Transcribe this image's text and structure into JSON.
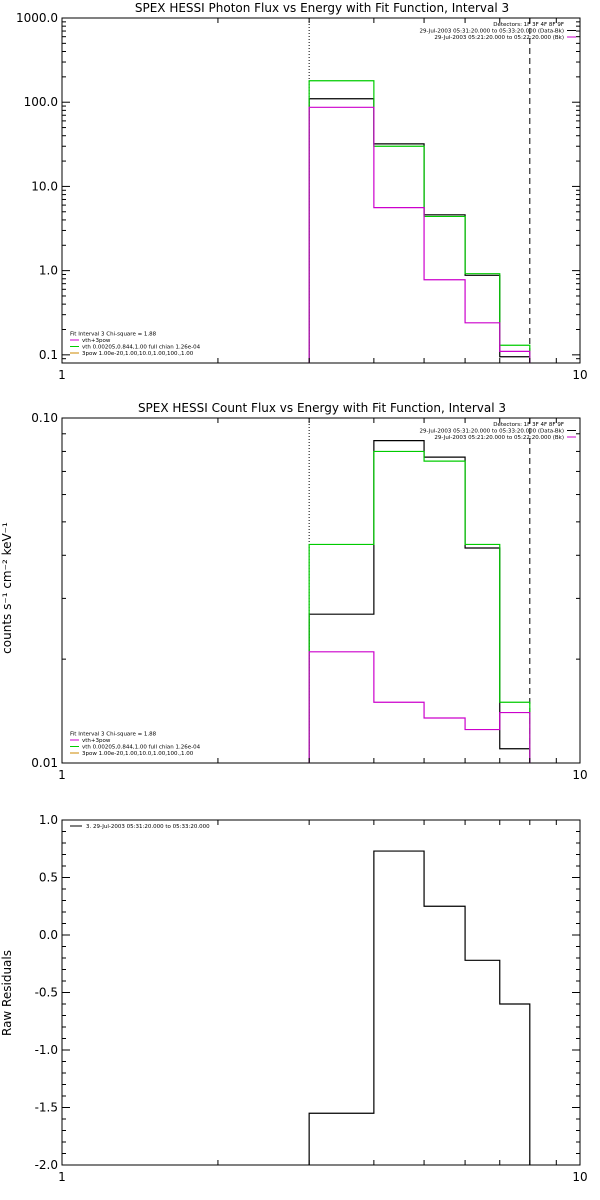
{
  "colors": {
    "data": "#000000",
    "vth_spow": "#cc00cc",
    "vth": "#00cc00",
    "spow": "#cc8800",
    "background": "#ffffff"
  },
  "chart_data": [
    {
      "type": "line",
      "step": true,
      "title": "SPEX HESSI Photon Flux vs Energy with Fit Function, Interval 3",
      "xlabel": "",
      "ylabel": "",
      "xscale": "log",
      "yscale": "log",
      "xlim": [
        1,
        10
      ],
      "ylim": [
        0.08,
        1000
      ],
      "x_tick_labels": [
        {
          "v": 1,
          "t": "1"
        },
        {
          "v": 10,
          "t": "10"
        }
      ],
      "y_tick_labels": [
        {
          "v": 0.1,
          "t": "0.1"
        },
        {
          "v": 1,
          "t": "1.0"
        },
        {
          "v": 10,
          "t": "10.0"
        },
        {
          "v": 100,
          "t": "100.0"
        },
        {
          "v": 1000,
          "t": "1000.0"
        }
      ],
      "vlines": [
        {
          "x": 3,
          "style": "dotted"
        },
        {
          "x": 8,
          "style": "dashed"
        }
      ],
      "bin_edges": [
        3,
        4,
        5,
        6,
        7,
        8
      ],
      "series": [
        {
          "color": "#000000",
          "values": [
            110,
            32,
            4.6,
            0.88,
            0.095
          ]
        },
        {
          "color": "#00cc00",
          "values": [
            180,
            30,
            4.4,
            0.92,
            0.13
          ]
        },
        {
          "color": "#cc00cc",
          "values": [
            87,
            5.6,
            0.78,
            0.24,
            0.11
          ]
        }
      ],
      "legend_top": [
        {
          "text": "Detectors: 1F 3F 4F 8F 9F",
          "color": ""
        },
        {
          "text": "29-Jul-2003 05:31:20.000 to 05:33:20.000 (Data-Bk)",
          "color": "#000000"
        },
        {
          "text": "29-Jul-2003 05:21:20.000 to 05:22:20.000 (Bk)",
          "color": "#cc00cc"
        }
      ],
      "legend_bottom": [
        {
          "text": "Fit Interval 3   Chi-square = 1.88",
          "color": ""
        },
        {
          "text": "vth+3pow",
          "color": "#cc00cc"
        },
        {
          "text": "vth 0.00205,0.844,1.00  full chian 1.26e-04",
          "color": "#00cc00"
        },
        {
          "text": "3pow 1.00e-20,1.00,10.0,1.00,100.,1.00",
          "color": "#cc8800"
        }
      ]
    },
    {
      "type": "line",
      "step": true,
      "title": "SPEX HESSI Count Flux vs Energy with Fit Function, Interval 3",
      "xlabel": "",
      "ylabel": "counts s⁻¹ cm⁻² keV⁻¹",
      "xscale": "log",
      "yscale": "log",
      "xlim": [
        1,
        10
      ],
      "ylim": [
        0.01,
        0.1
      ],
      "x_tick_labels": [
        {
          "v": 1,
          "t": "1"
        },
        {
          "v": 10,
          "t": "10"
        }
      ],
      "y_tick_labels": [
        {
          "v": 0.01,
          "t": "0.01"
        },
        {
          "v": 0.1,
          "t": "0.10"
        }
      ],
      "vlines": [
        {
          "x": 3,
          "style": "dotted"
        },
        {
          "x": 8,
          "style": "dashed"
        }
      ],
      "bin_edges": [
        3,
        4,
        5,
        6,
        7,
        8
      ],
      "series": [
        {
          "color": "#000000",
          "values": [
            0.027,
            0.086,
            0.077,
            0.042,
            0.011
          ]
        },
        {
          "color": "#00cc00",
          "values": [
            0.043,
            0.08,
            0.075,
            0.043,
            0.015
          ]
        },
        {
          "color": "#cc00cc",
          "values": [
            0.021,
            0.015,
            0.0135,
            0.0125,
            0.014
          ]
        }
      ],
      "legend_top": [
        {
          "text": "Detectors: 1F 3F 4F 8F 9F",
          "color": ""
        },
        {
          "text": "29-Jul-2003 05:31:20.000 to 05:33:20.000 (Data-Bk)",
          "color": "#000000"
        },
        {
          "text": "29-Jul-2003 05:21:20.000 to 05:22:20.000 (Bk)",
          "color": "#cc00cc"
        }
      ],
      "legend_bottom": [
        {
          "text": "Fit Interval 3   Chi-square = 1.88",
          "color": ""
        },
        {
          "text": "vth+3pow",
          "color": "#cc00cc"
        },
        {
          "text": "vth 0.00205,0.844,1.00  full chian 1.26e-04",
          "color": "#00cc00"
        },
        {
          "text": "3pow 1.00e-20,1.00,10.0,1.00,100.,1.00",
          "color": "#cc8800"
        }
      ]
    },
    {
      "type": "line",
      "step": true,
      "title": "",
      "xlabel": "",
      "ylabel": "Raw Residuals",
      "xscale": "log",
      "yscale": "linear",
      "xlim": [
        1,
        10
      ],
      "ylim": [
        -2.0,
        1.0
      ],
      "x_tick_labels": [
        {
          "v": 1,
          "t": "1"
        },
        {
          "v": 10,
          "t": "10"
        }
      ],
      "y_tick_labels": [
        {
          "v": -2.0,
          "t": "-2.0"
        },
        {
          "v": -1.5,
          "t": "-1.5"
        },
        {
          "v": -1.0,
          "t": "-1.0"
        },
        {
          "v": -0.5,
          "t": "-0.5"
        },
        {
          "v": 0.0,
          "t": "0.0"
        },
        {
          "v": 0.5,
          "t": "0.5"
        },
        {
          "v": 1.0,
          "t": "1.0"
        }
      ],
      "vlines": [],
      "bin_edges": [
        3,
        4,
        5,
        6,
        7,
        8
      ],
      "drop_to_axis": true,
      "series": [
        {
          "color": "#000000",
          "values": [
            -1.55,
            0.73,
            0.25,
            -0.22,
            -0.6
          ]
        }
      ],
      "legend_top": [
        {
          "text": "3. 29-Jul-2003 05:31:20.000 to 05:33:20.000",
          "color": "#000000"
        }
      ],
      "legend_bottom": []
    }
  ]
}
